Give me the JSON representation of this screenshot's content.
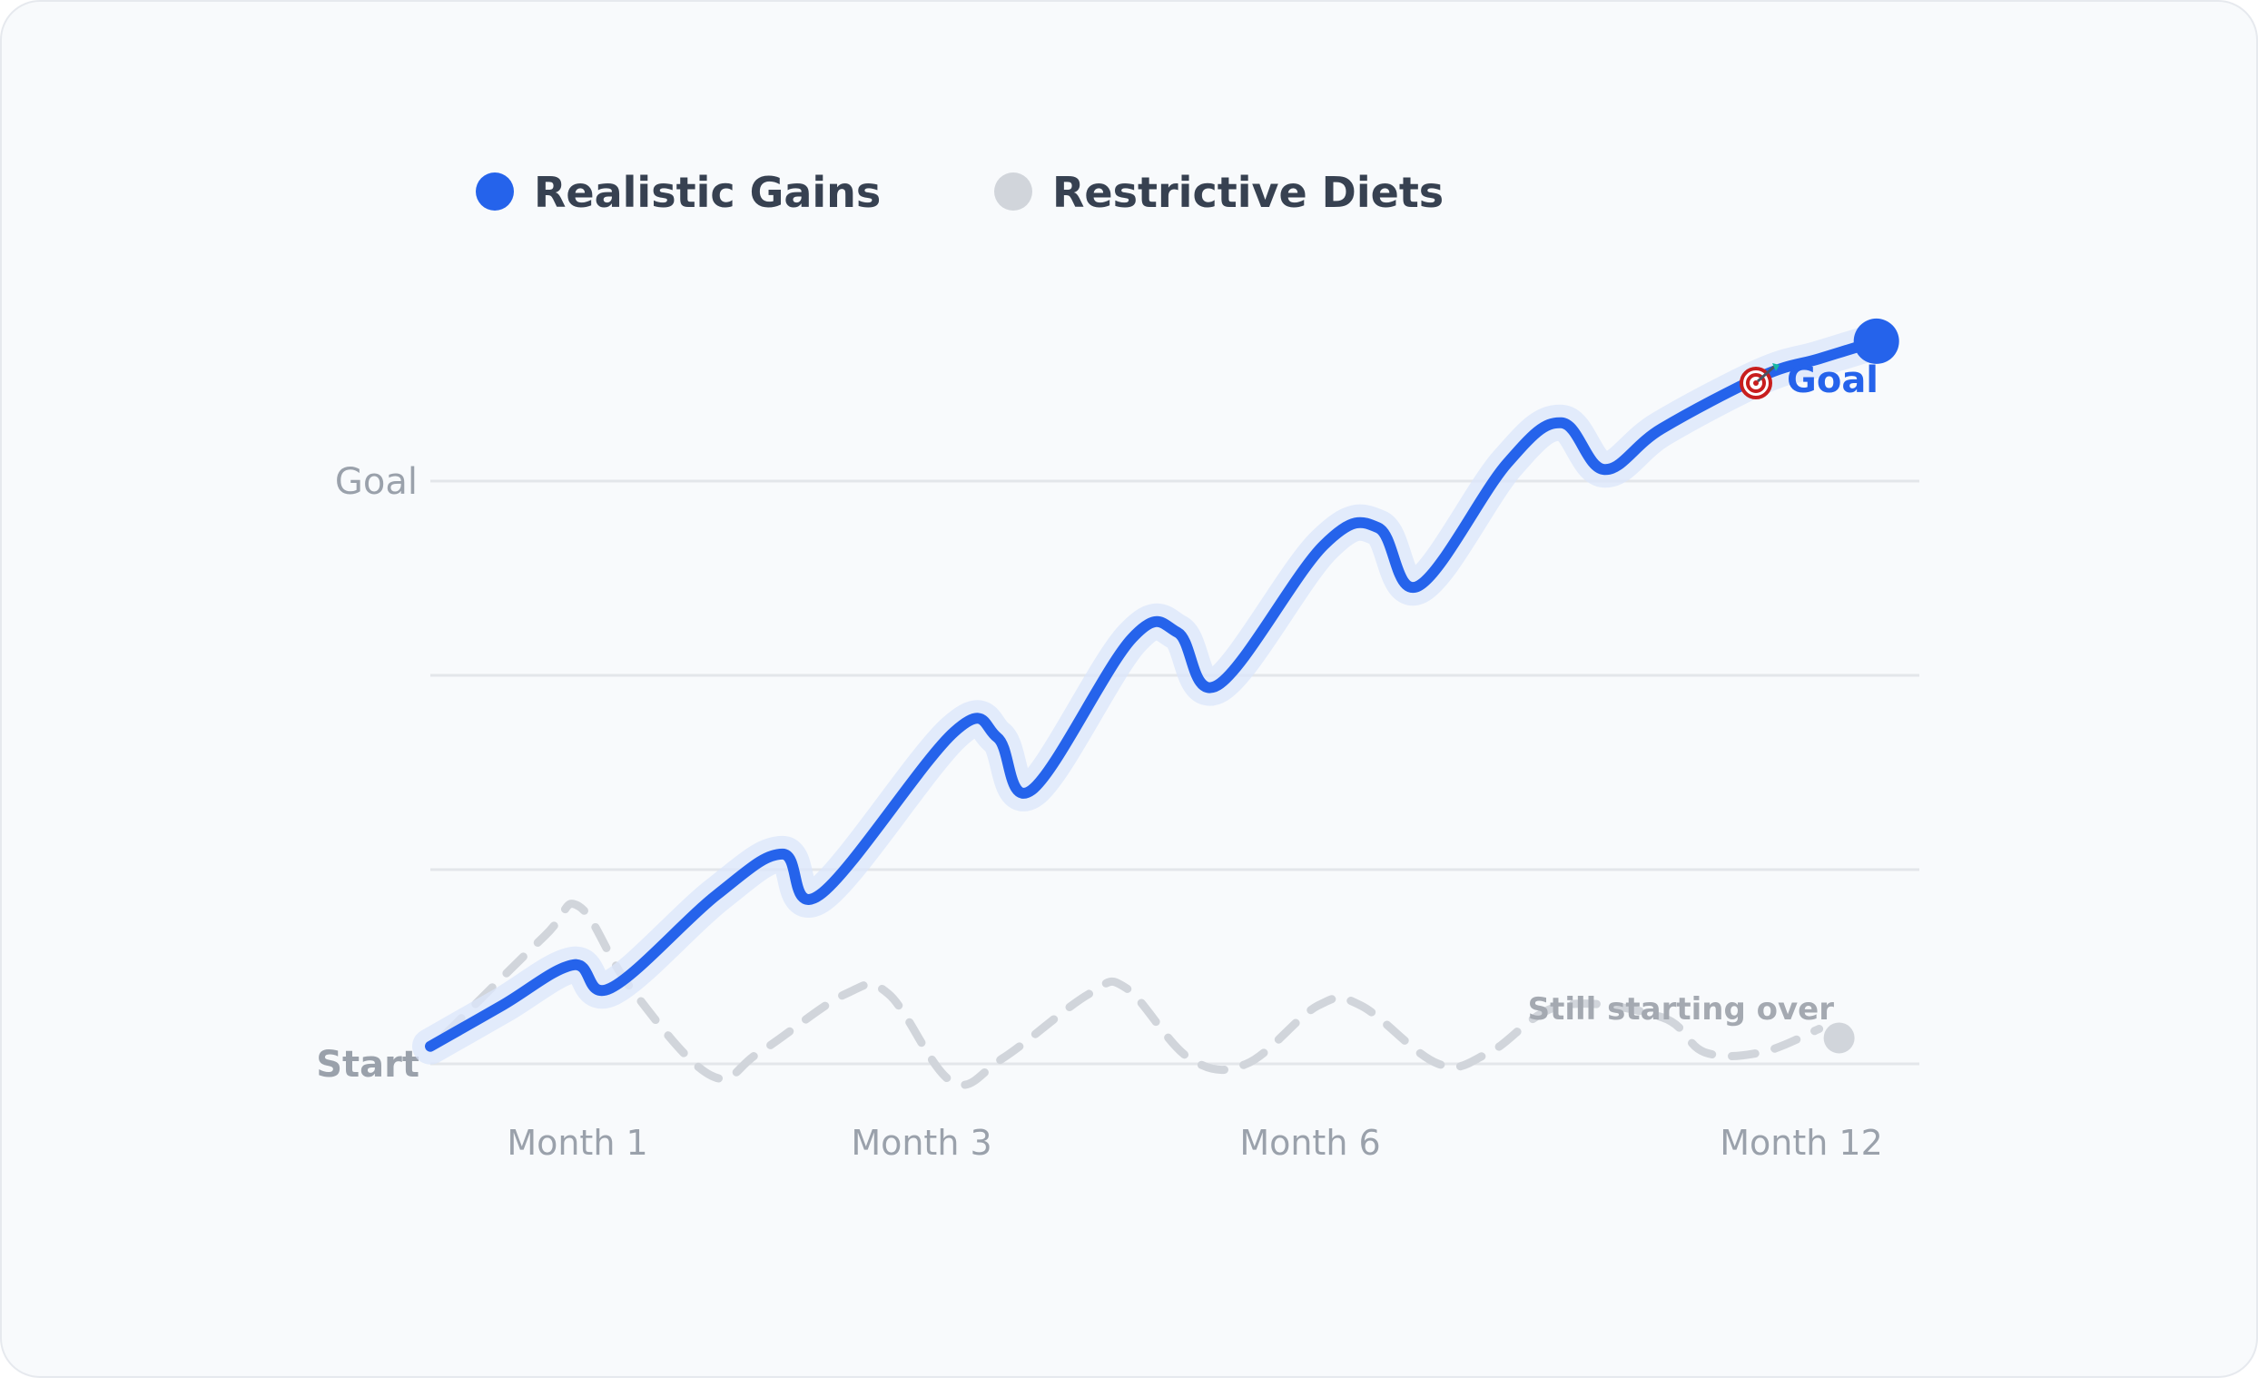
{
  "chart_data": {
    "type": "line",
    "x_ticks": [
      "Month 1",
      "Month 3",
      "Month 6",
      "Month 12"
    ],
    "y_ticks": [
      "Start",
      "Goal"
    ],
    "grid": true,
    "legend_placement": "top-left",
    "series": [
      {
        "name": "Realistic Gains",
        "color": "#2563eb",
        "style": "solid",
        "end_annotation": "Goal",
        "points": [
          [
            0.0,
            0.03
          ],
          [
            0.25,
            0.1
          ],
          [
            0.5,
            0.17
          ],
          [
            0.63,
            0.13
          ],
          [
            1.0,
            0.29
          ],
          [
            1.23,
            0.36
          ],
          [
            1.36,
            0.29
          ],
          [
            1.83,
            0.57
          ],
          [
            1.98,
            0.56
          ],
          [
            2.1,
            0.47
          ],
          [
            2.45,
            0.73
          ],
          [
            2.61,
            0.74
          ],
          [
            2.75,
            0.65
          ],
          [
            3.12,
            0.89
          ],
          [
            3.31,
            0.92
          ],
          [
            3.45,
            0.82
          ],
          [
            3.76,
            1.03
          ],
          [
            3.95,
            1.1
          ],
          [
            4.1,
            1.02
          ],
          [
            4.3,
            1.09
          ],
          [
            4.65,
            1.18
          ],
          [
            4.85,
            1.21
          ],
          [
            5.05,
            1.24
          ]
        ]
      },
      {
        "name": "Restrictive Diets",
        "color": "#d1d5db",
        "style": "dashed",
        "end_annotation": "Still starting over",
        "points": [
          [
            0.05,
            0.05
          ],
          [
            0.4,
            0.22
          ],
          [
            0.52,
            0.27
          ],
          [
            0.7,
            0.13
          ],
          [
            0.98,
            -0.02
          ],
          [
            1.15,
            0.02
          ],
          [
            1.45,
            0.12
          ],
          [
            1.6,
            0.12
          ],
          [
            1.82,
            -0.03
          ],
          [
            2.0,
            0.01
          ],
          [
            2.3,
            0.12
          ],
          [
            2.43,
            0.13
          ],
          [
            2.65,
            0.01
          ],
          [
            2.85,
            0.0
          ],
          [
            3.1,
            0.1
          ],
          [
            3.25,
            0.1
          ],
          [
            3.52,
            0.0
          ],
          [
            3.7,
            0.02
          ],
          [
            3.95,
            0.1
          ],
          [
            4.3,
            0.08
          ],
          [
            4.45,
            0.02
          ],
          [
            4.65,
            0.02
          ],
          [
            4.85,
            0.06
          ]
        ]
      }
    ]
  }
}
